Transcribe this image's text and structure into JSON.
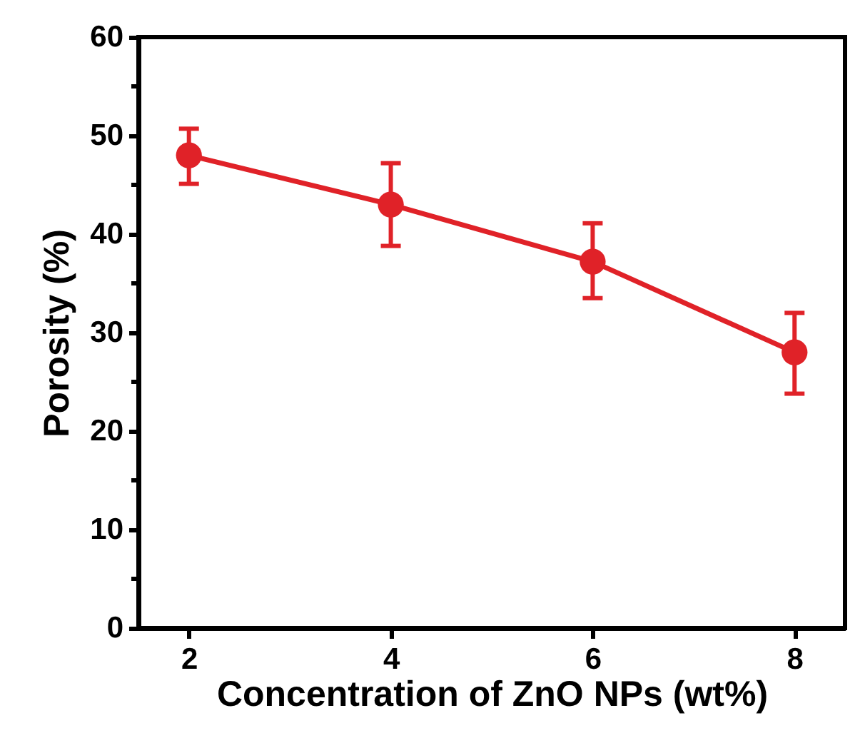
{
  "chart_data": {
    "type": "line",
    "xlabel": "Concentration of ZnO NPs (wt%)",
    "ylabel": "Porosity (%)",
    "x": [
      2,
      4,
      6,
      8
    ],
    "series": [
      {
        "color": "#e02228",
        "values": [
          48,
          43,
          37.2,
          28
        ],
        "errors": [
          [
            45.1,
            50.7
          ],
          [
            38.8,
            47.2
          ],
          [
            33.5,
            41.1
          ],
          [
            23.8,
            32
          ]
        ]
      }
    ],
    "xlim": [
      1.5,
      8.5
    ],
    "xticks": [
      2,
      4,
      6,
      8
    ],
    "ylim": [
      0,
      60
    ],
    "yticks": [
      0,
      {
        "value": 5,
        "label": null
      },
      10,
      {
        "value": 15,
        "label": null
      },
      20,
      {
        "value": 25,
        "label": null
      },
      30,
      {
        "value": 35,
        "label": null
      },
      40,
      {
        "value": 45,
        "label": null
      },
      50,
      {
        "value": 55,
        "label": null
      },
      60
    ],
    "marker": "circle",
    "line_style": "solid"
  }
}
